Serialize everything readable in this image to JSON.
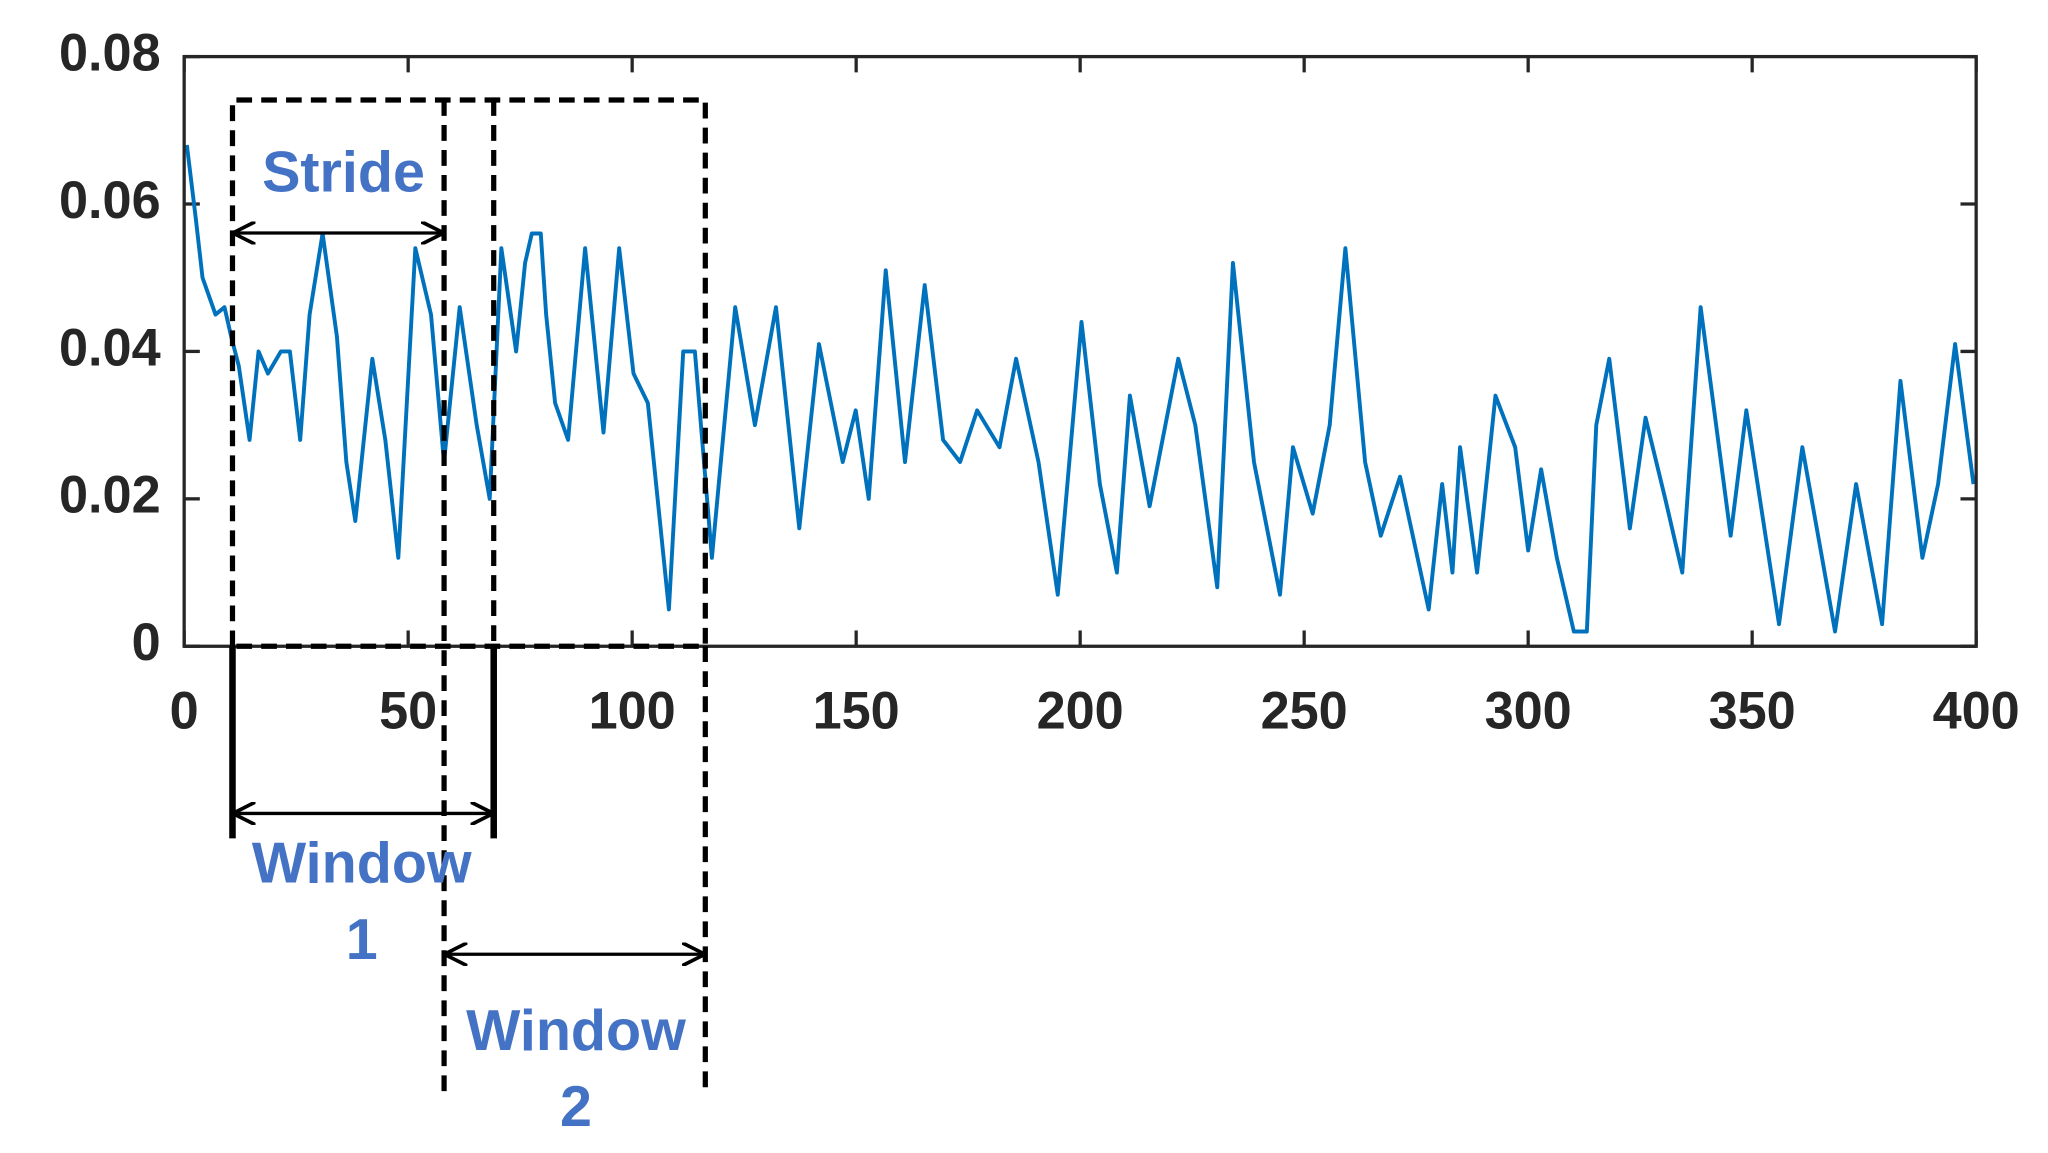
{
  "chart_data": {
    "type": "line",
    "x": [
      0.6,
      2.6,
      4.1,
      7.0,
      9.0,
      10.5,
      12.2,
      14.6,
      16.6,
      18.7,
      21.6,
      23.6,
      25.9,
      28.0,
      30.9,
      34.1,
      36.2,
      38.2,
      42.0,
      44.9,
      47.8,
      51.6,
      55.1,
      58.0,
      61.5,
      65.3,
      68.2,
      70.8,
      74.1,
      76.1,
      77.6,
      79.6,
      80.8,
      82.8,
      85.7,
      89.5,
      93.6,
      97.1,
      100.3,
      103.5,
      108.2,
      111.4,
      114.0,
      117.8,
      123.0,
      127.4,
      132.1,
      137.3,
      141.7,
      147.0,
      149.9,
      152.8,
      156.6,
      160.9,
      165.3,
      169.4,
      173.2,
      177.0,
      182.0,
      185.7,
      190.7,
      195.0,
      200.3,
      204.4,
      208.2,
      211.1,
      215.5,
      221.9,
      225.7,
      230.6,
      234.1,
      238.8,
      244.6,
      247.5,
      251.9,
      255.7,
      259.2,
      263.6,
      267.1,
      271.4,
      277.8,
      280.8,
      283.1,
      284.8,
      288.6,
      292.7,
      297.1,
      300.0,
      302.9,
      306.4,
      310.2,
      313.1,
      315.2,
      318.1,
      322.7,
      326.2,
      330.6,
      334.4,
      338.5,
      345.2,
      348.7,
      356.0,
      361.2,
      365.6,
      368.5,
      373.2,
      379.0,
      383.1,
      388.0,
      391.5,
      395.3,
      399.4
    ],
    "series": [
      {
        "color": "#0072bd",
        "values": [
          0.068,
          0.058,
          0.05,
          0.045,
          0.046,
          0.042,
          0.038,
          0.028,
          0.04,
          0.037,
          0.04,
          0.04,
          0.028,
          0.045,
          0.056,
          0.042,
          0.025,
          0.017,
          0.039,
          0.028,
          0.012,
          0.054,
          0.045,
          0.025,
          0.046,
          0.03,
          0.02,
          0.054,
          0.04,
          0.052,
          0.056,
          0.056,
          0.045,
          0.033,
          0.028,
          0.054,
          0.029,
          0.054,
          0.037,
          0.033,
          0.005,
          0.04,
          0.04,
          0.012,
          0.046,
          0.03,
          0.046,
          0.016,
          0.041,
          0.025,
          0.032,
          0.02,
          0.051,
          0.025,
          0.049,
          0.028,
          0.025,
          0.032,
          0.027,
          0.039,
          0.025,
          0.007,
          0.044,
          0.022,
          0.01,
          0.034,
          0.019,
          0.039,
          0.03,
          0.008,
          0.052,
          0.025,
          0.007,
          0.027,
          0.018,
          0.03,
          0.054,
          0.025,
          0.015,
          0.023,
          0.005,
          0.022,
          0.01,
          0.027,
          0.01,
          0.034,
          0.027,
          0.013,
          0.024,
          0.012,
          0.002,
          0.002,
          0.03,
          0.039,
          0.016,
          0.031,
          0.02,
          0.01,
          0.046,
          0.015,
          0.032,
          0.003,
          0.027,
          0.012,
          0.002,
          0.022,
          0.003,
          0.036,
          0.012,
          0.022,
          0.041,
          0.022
        ]
      }
    ],
    "xlim": [
      0,
      400
    ],
    "xticks": [
      0,
      50,
      100,
      150,
      200,
      250,
      300,
      350,
      400
    ],
    "ylim": [
      0,
      0.08
    ],
    "yticks": [
      0,
      0.02,
      0.04,
      0.06,
      0.08
    ],
    "annotations": {
      "stride": "Stride",
      "window1": [
        "Window",
        "1"
      ],
      "window2": [
        "Window",
        "2"
      ]
    }
  }
}
